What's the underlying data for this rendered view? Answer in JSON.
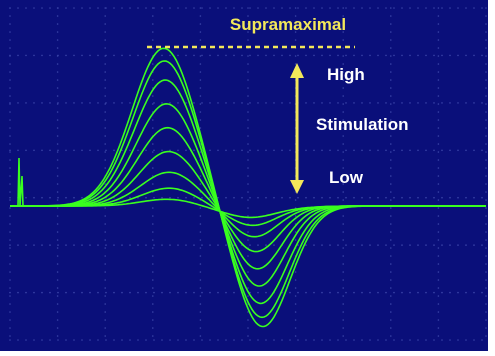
{
  "colors": {
    "background": "#0a0f7a",
    "trace": "#39ff1f",
    "annotation": "#f3e85a",
    "label": "#ffffff",
    "grid": "#3a44a8"
  },
  "chart_data": {
    "type": "line",
    "description_role": "oscilloscope traces of a compound action potential at increasing stimulation strength",
    "title": "Supramaximal",
    "annotations": {
      "high": "High",
      "stimulation": "Stimulation",
      "low": "Low"
    },
    "grid": true,
    "xlim": [
      0,
      10
    ],
    "ylim": [
      -4,
      5
    ],
    "baseline": 0,
    "series": [
      {
        "amplitude": 0.05
      },
      {
        "amplitude": 0.12
      },
      {
        "amplitude": 0.22
      },
      {
        "amplitude": 0.35
      },
      {
        "amplitude": 0.5
      },
      {
        "amplitude": 0.65
      },
      {
        "amplitude": 0.8
      },
      {
        "amplitude": 0.92
      },
      {
        "amplitude": 1.0
      }
    ]
  }
}
